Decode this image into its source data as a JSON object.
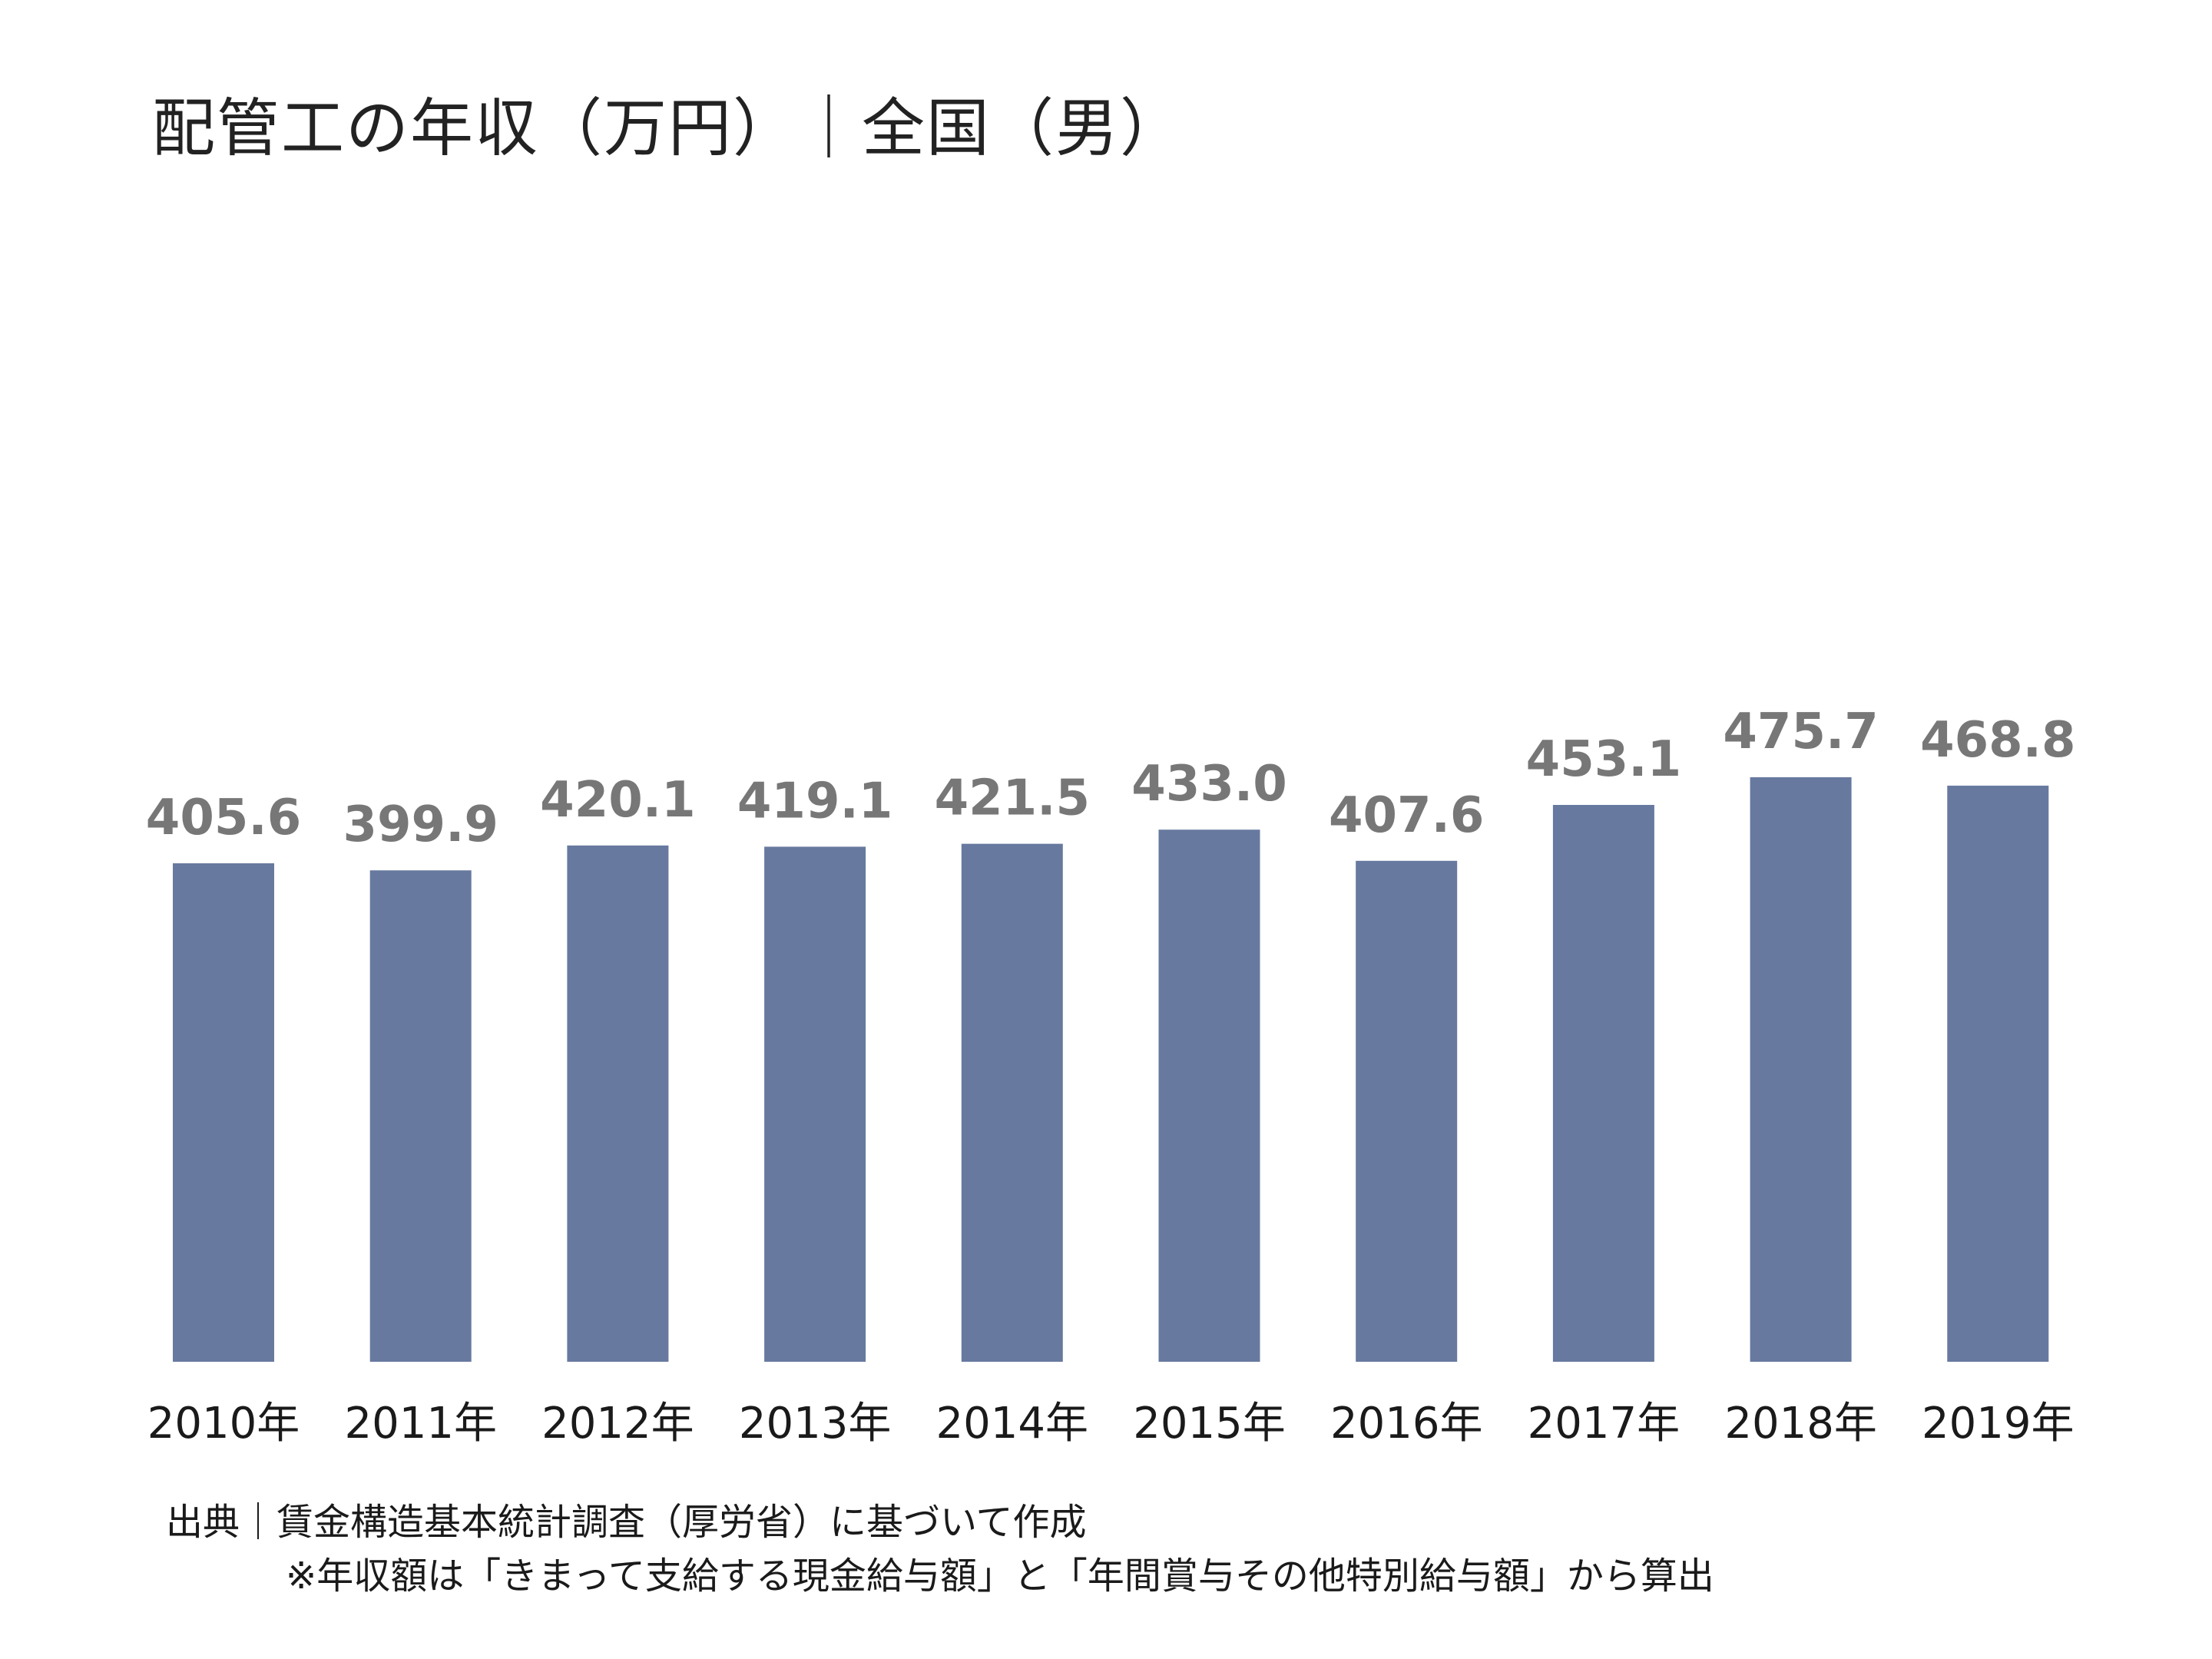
{
  "chart_data": {
    "type": "bar",
    "title": "配管工の年収（万円）｜全国（男）",
    "categories": [
      "2010年",
      "2011年",
      "2012年",
      "2013年",
      "2014年",
      "2015年",
      "2016年",
      "2017年",
      "2018年",
      "2019年"
    ],
    "values": [
      405.6,
      399.9,
      420.1,
      419.1,
      421.5,
      433.0,
      407.6,
      453.1,
      475.7,
      468.8
    ],
    "data_labels": [
      "405.6",
      "399.9",
      "420.1",
      "419.1",
      "421.5",
      "433.0",
      "407.6",
      "453.1",
      "475.7",
      "468.8"
    ],
    "ylim": [
      0,
      500
    ],
    "grid": false,
    "bar_color": "#67799f",
    "label_color": "#777777"
  },
  "footer": {
    "source": "出典｜賃金構造基本統計調査（厚労省）に基づいて作成",
    "note": "※年収額は「きまって支給する現金給与額」と「年間賞与その他特別給与額」から算出"
  }
}
